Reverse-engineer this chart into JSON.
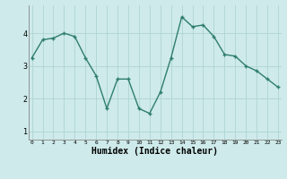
{
  "x": [
    0,
    1,
    2,
    3,
    4,
    5,
    6,
    7,
    8,
    9,
    10,
    11,
    12,
    13,
    14,
    15,
    16,
    17,
    18,
    19,
    20,
    21,
    22,
    23
  ],
  "y": [
    3.25,
    3.8,
    3.85,
    4.0,
    3.9,
    3.25,
    2.7,
    1.7,
    2.6,
    2.6,
    1.7,
    1.55,
    2.2,
    3.25,
    4.5,
    4.2,
    4.25,
    3.9,
    3.35,
    3.3,
    3.0,
    2.85,
    2.6,
    2.35
  ],
  "line_color": "#2e7d6e",
  "marker": "+",
  "markersize": 3.5,
  "linewidth": 1.0,
  "bg_color": "#ceeaea",
  "grid_color": "#b0d4d4",
  "xlabel": "Humidex (Indice chaleur)",
  "xlabel_fontsize": 7.0,
  "ytick_labels": [
    "1",
    "2",
    "3",
    "4"
  ],
  "ytick_values": [
    1,
    2,
    3,
    4
  ],
  "xtick_values": [
    0,
    1,
    2,
    3,
    4,
    5,
    6,
    7,
    8,
    9,
    10,
    11,
    12,
    13,
    14,
    15,
    16,
    17,
    18,
    19,
    20,
    21,
    22,
    23
  ],
  "xlim": [
    -0.3,
    23.3
  ],
  "ylim": [
    0.75,
    4.85
  ]
}
